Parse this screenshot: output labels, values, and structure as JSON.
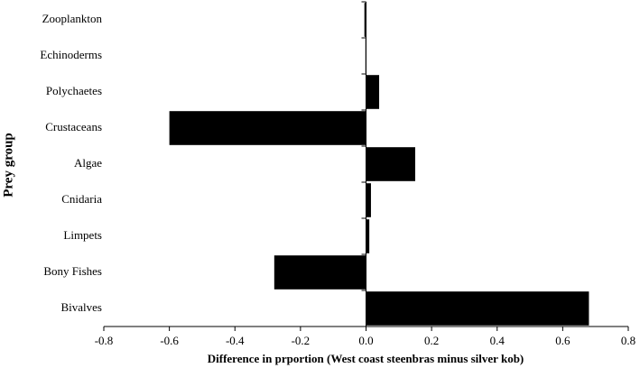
{
  "chart_data": {
    "type": "barh",
    "categories": [
      "Zooplankton",
      "Echinoderms",
      "Polychaetes",
      "Crustaceans",
      "Algae",
      "Cnidaria",
      "Limpets",
      "Bony Fishes",
      "Bivalves"
    ],
    "values": [
      -0.005,
      -0.002,
      0.04,
      -0.6,
      0.15,
      0.015,
      0.01,
      -0.28,
      0.68
    ],
    "color": "#000000",
    "xlim": [
      -0.8,
      0.8
    ],
    "xticks": [
      -0.8,
      -0.6,
      -0.4,
      -0.2,
      {
        "value": 0,
        "label": "0.0"
      },
      0.2,
      0.4,
      0.6,
      0.8
    ],
    "xlabel": "Difference in prportion (West coast steenbras minus silver kob)",
    "ylabel": "Prey group"
  }
}
